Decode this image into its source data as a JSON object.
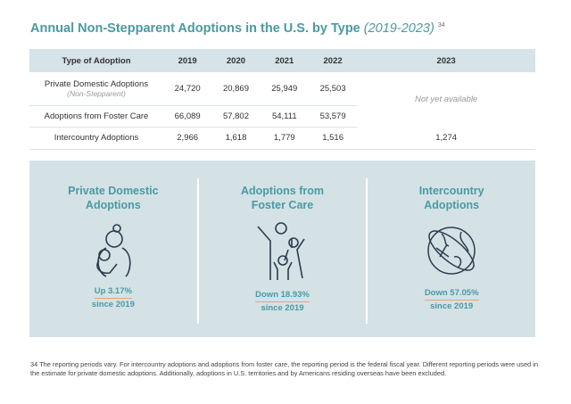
{
  "title": {
    "main": "Annual Non-Stepparent Adoptions in the U.S. by Type",
    "years": "(2019-2023)",
    "footnote_ref": "34"
  },
  "table": {
    "headers": [
      "Type of Adoption",
      "2019",
      "2020",
      "2021",
      "2022",
      "2023"
    ],
    "rows": [
      {
        "type": "Private Domestic Adoptions",
        "note": "(Non-Stepparent)",
        "values": [
          "24,720",
          "20,869",
          "25,949",
          "25,503"
        ]
      },
      {
        "type": "Adoptions from Foster Care",
        "values": [
          "66,089",
          "57,802",
          "54,111",
          "53,579"
        ]
      },
      {
        "type": "Intercountry Adoptions",
        "values": [
          "2,966",
          "1,618",
          "1,779",
          "1,516",
          "1,274"
        ]
      }
    ],
    "not_available": "Not yet available"
  },
  "panel": [
    {
      "heading": "Private Domestic Adoptions",
      "change": "Up 3.17%",
      "since": "since 2019",
      "icon": "mother-child-icon"
    },
    {
      "heading": "Adoptions from Foster Care",
      "change": "Down 18.93%",
      "since": "since 2019",
      "icon": "family-icon"
    },
    {
      "heading": "Intercountry Adoptions",
      "change": "Down 57.05%",
      "since": "since 2019",
      "icon": "globe-airplane-icon"
    }
  ],
  "colors": {
    "accent": "#4a9aa2",
    "panel_bg": "#d4e2e6",
    "underline": "#e8a27a"
  },
  "footnote": "34   The reporting periods vary. For intercountry adoptions and adoptions from foster care, the reporting period is the federal fiscal year. Different reporting periods were used in the estimate for private domestic adoptions. Additionally, adoptions in U.S. territories and by Americans residing overseas have been excluded."
}
